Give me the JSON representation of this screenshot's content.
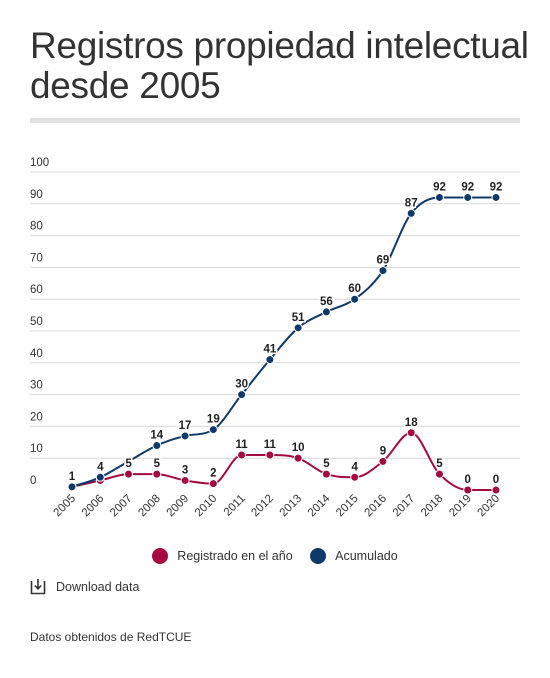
{
  "title": "Registros propiedad intelectual desde 2005",
  "legend": {
    "registrado": "Registrado en el año",
    "acumulado": "Acumulado"
  },
  "download_label": "Download data",
  "source": "Datos obtenidos de RedTCUE",
  "colors": {
    "registrado": "#a50a3f",
    "acumulado": "#0e3a6b",
    "grid": "#d9d9d9",
    "text": "#333333"
  },
  "icons": {
    "download": "download-icon"
  },
  "chart_data": {
    "type": "line",
    "categories": [
      "2005",
      "2006",
      "2007",
      "2008",
      "2009",
      "2010",
      "2011",
      "2012",
      "2013",
      "2014",
      "2015",
      "2016",
      "2017",
      "2018",
      "2019",
      "2020"
    ],
    "series": [
      {
        "name": "Registrado en el año",
        "values": [
          1,
          3,
          5,
          5,
          3,
          2,
          11,
          11,
          10,
          5,
          4,
          9,
          18,
          5,
          0,
          0
        ],
        "labels": [
          "",
          "",
          "5",
          "5",
          "3",
          "2",
          "11",
          "11",
          "10",
          "5",
          "4",
          "9",
          "18",
          "5",
          "0",
          "0"
        ]
      },
      {
        "name": "Acumulado",
        "values": [
          1,
          4,
          9,
          14,
          17,
          19,
          30,
          41,
          51,
          56,
          60,
          69,
          87,
          92,
          92,
          92
        ],
        "labels": [
          "1",
          "4",
          "",
          "14",
          "17",
          "19",
          "30",
          "41",
          "51",
          "56",
          "60",
          "69",
          "87",
          "92",
          "92",
          "92"
        ]
      }
    ],
    "yticks": [
      "0",
      "10",
      "20",
      "30",
      "40",
      "50",
      "60",
      "70",
      "80",
      "90",
      "100"
    ],
    "ylim": [
      0,
      100
    ],
    "grid": true,
    "legend_position": "bottom"
  }
}
